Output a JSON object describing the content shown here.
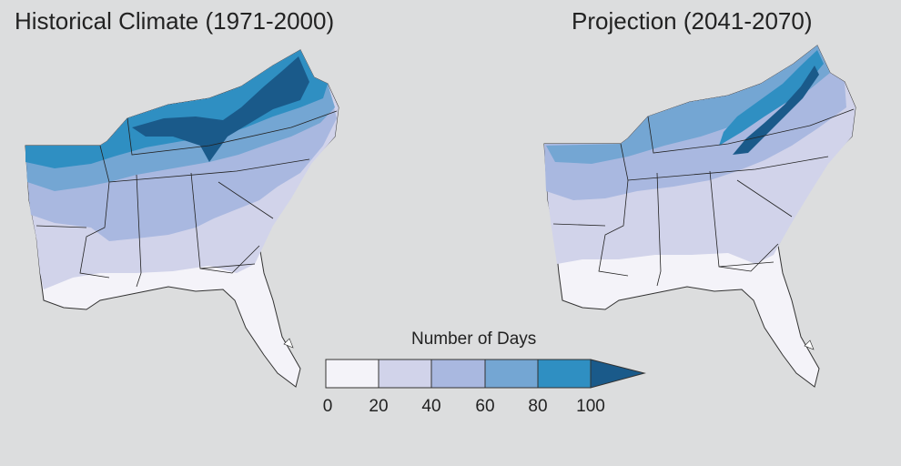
{
  "maps": [
    {
      "title": "Historical Climate (1971-2000)"
    },
    {
      "title": "Projection (2041-2070)"
    }
  ],
  "legend": {
    "title": "Number of Days",
    "ticks": [
      "0",
      "20",
      "40",
      "60",
      "80",
      "100"
    ],
    "bins": [
      {
        "range": "0-20",
        "color": "#f4f3f9"
      },
      {
        "range": "20-40",
        "color": "#d1d3ea"
      },
      {
        "range": "40-60",
        "color": "#a9b8e0"
      },
      {
        "range": "60-80",
        "color": "#74a6d3"
      },
      {
        "range": "80-100",
        "color": "#2f8fc2"
      },
      {
        "range": ">100",
        "color": "#1a5a8a"
      }
    ]
  }
}
